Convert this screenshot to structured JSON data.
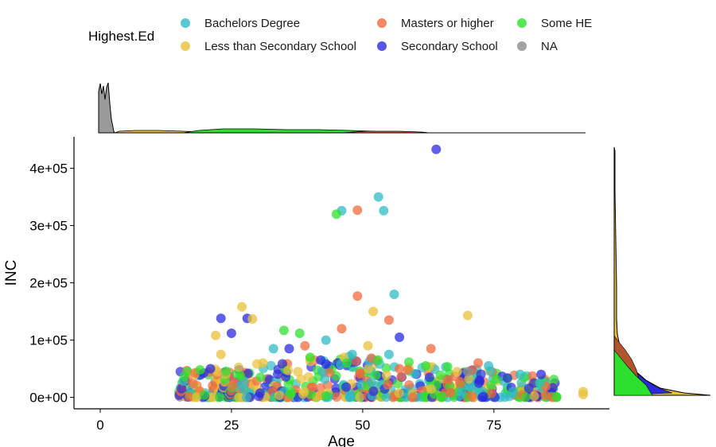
{
  "chart_data": {
    "type": "scatter",
    "title": "",
    "xlabel": "Age",
    "ylabel": "INC",
    "xlim": [
      -5,
      97
    ],
    "ylim": [
      -20000,
      455000
    ],
    "xticks": [
      0,
      25,
      50,
      75
    ],
    "xtick_labels": [
      "0",
      "25",
      "50",
      "75"
    ],
    "yticks": [
      0,
      100000,
      200000,
      300000,
      400000
    ],
    "ytick_labels": [
      "0e+00",
      "1e+05",
      "2e+05",
      "3e+05",
      "4e+05"
    ],
    "grid": false,
    "legend": {
      "title": "Highest.Ed",
      "placement": "top",
      "entries": [
        {
          "name": "Bachelors Degree",
          "color": "#2fbcc4"
        },
        {
          "name": "Less than Secondary School",
          "color": "#e8c13a"
        },
        {
          "name": "Masters or higher",
          "color": "#f26a3d"
        },
        {
          "name": "Secondary School",
          "color": "#2a2ae0"
        },
        {
          "name": "Some HE",
          "color": "#2de02d"
        },
        {
          "name": "NA",
          "color": "#8c8c8c"
        }
      ]
    },
    "series": [
      {
        "name": "Bachelors Degree",
        "color": "#2fbcc4",
        "x": [
          46,
          53,
          54,
          56,
          48,
          80,
          74,
          43,
          55,
          33
        ],
        "y": [
          326000,
          350000,
          326000,
          180000,
          75000,
          40000,
          55000,
          100000,
          75000,
          85000
        ]
      },
      {
        "name": "Masters or higher",
        "color": "#f26a3d",
        "x": [
          49,
          49,
          46,
          55,
          63,
          72,
          39,
          57
        ],
        "y": [
          327000,
          177000,
          120000,
          135000,
          85000,
          60000,
          90000,
          50000
        ]
      },
      {
        "name": "Some HE",
        "color": "#2de02d",
        "x": [
          45,
          35,
          38,
          19,
          40,
          47,
          62
        ],
        "y": [
          320000,
          117000,
          112000,
          48000,
          70000,
          60000,
          55000
        ]
      },
      {
        "name": "Secondary School",
        "color": "#2a2ae0",
        "x": [
          64,
          23,
          25,
          28,
          57,
          84,
          36,
          21,
          42
        ],
        "y": [
          433000,
          138000,
          112000,
          138000,
          105000,
          40000,
          85000,
          50000,
          65000
        ]
      },
      {
        "name": "Less than Secondary School",
        "color": "#e8c13a",
        "x": [
          27,
          29,
          22,
          52,
          51,
          70,
          23,
          31,
          92,
          92,
          68
        ],
        "y": [
          158000,
          137000,
          108000,
          150000,
          90000,
          143000,
          75000,
          60000,
          10000,
          5000,
          45000
        ]
      },
      {
        "name": "NA",
        "color": "#8c8c8c",
        "x": [
          70
        ],
        "y": [
          45000
        ]
      }
    ]
  }
}
